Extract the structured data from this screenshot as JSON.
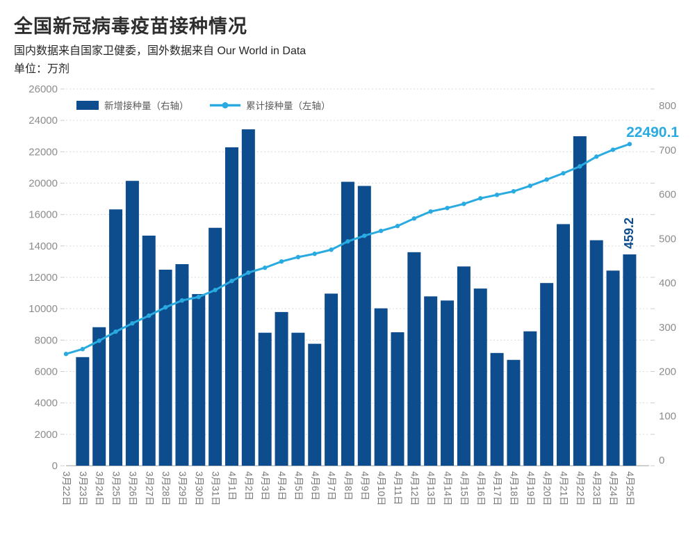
{
  "header": {
    "title": "全国新冠病毒疫苗接种情况",
    "subtitle": "国内数据来自国家卫健委，国外数据来自 Our World in Data",
    "unit_line": "单位：万剂"
  },
  "legend": {
    "bar_label": "新增接种量（右轴）",
    "line_label": "累计接种量（左轴）"
  },
  "colors": {
    "bar": "#0d4d8d",
    "line": "#29abe2",
    "grid": "#dadada",
    "baseline": "#bfbfbf",
    "tick": "#cccccc",
    "axis_text": "#8c8c8c",
    "date_text": "#767676",
    "legend_text": "#595959",
    "annotation_cumulative": "#29abe2",
    "annotation_daily": "#0d4d8d"
  },
  "chart_data": {
    "type": "bar+line",
    "title": "全国新冠病毒疫苗接种情况",
    "categories": [
      "3月22日",
      "3月23日",
      "3月24日",
      "3月25日",
      "3月26日",
      "3月27日",
      "3月28日",
      "3月29日",
      "3月30日",
      "3月31日",
      "4月1日",
      "4月2日",
      "4月3日",
      "4月4日",
      "4月5日",
      "4月6日",
      "4月7日",
      "4月8日",
      "4月9日",
      "4月10日",
      "4月11日",
      "4月12日",
      "4月13日",
      "4月14日",
      "4月15日",
      "4月16日",
      "4月17日",
      "4月18日",
      "4月19日",
      "4月20日",
      "4月21日",
      "4月22日",
      "4月23日",
      "4月24日",
      "4月25日"
    ],
    "series": [
      {
        "name": "新增接种量（右轴）",
        "type": "bar",
        "axis": "right",
        "values": [
          null,
          236,
          301,
          557,
          619,
          500,
          426,
          438,
          373,
          517,
          692,
          731,
          289,
          334,
          289,
          265,
          374,
          617,
          608,
          342,
          290,
          464,
          368,
          359,
          433,
          385,
          245,
          230,
          292,
          397,
          525,
          716,
          490,
          424,
          459.2
        ]
      },
      {
        "name": "累计接种量（左轴）",
        "type": "line",
        "axis": "left",
        "values": [
          7120,
          7430,
          7960,
          8540,
          9070,
          9560,
          10090,
          10530,
          10750,
          11190,
          11770,
          12300,
          12610,
          13010,
          13290,
          13500,
          13760,
          14290,
          14650,
          14960,
          15270,
          15750,
          16390,
          16830,
          17360,
          18070,
          18510,
          18960,
          19660,
          20230,
          20630,
          21070,
          21690,
          22130,
          22490.1
        ]
      }
    ],
    "left_axis": {
      "ticks": [
        "26000",
        "24000",
        "22000",
        "20000",
        "16000",
        "14000",
        "12000",
        "10000",
        "8000",
        "6000",
        "4000",
        "2000",
        "0"
      ],
      "range": [
        0,
        26000
      ]
    },
    "right_axis": {
      "ticks": [
        "800",
        "700",
        "600",
        "500",
        "400",
        "300",
        "200",
        "100",
        "0"
      ],
      "range": [
        0,
        800
      ]
    },
    "annotations": [
      {
        "text": "22490.1",
        "series": "累计接种量（左轴）",
        "at": "4月25日"
      },
      {
        "text": "459.2",
        "series": "新增接种量（右轴）",
        "at": "4月25日"
      }
    ],
    "grid": "horizontal dotted"
  }
}
